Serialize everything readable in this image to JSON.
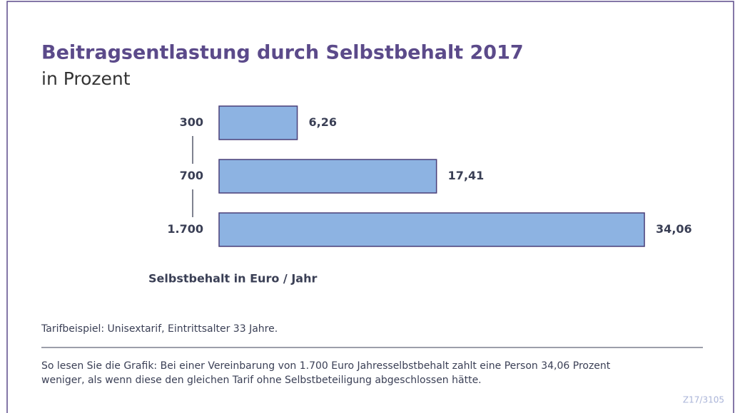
{
  "chart_data": {
    "type": "bar",
    "title": "Beitragsentlastung durch Selbstbehalt 2017",
    "subtitle": "in Prozent",
    "categories": [
      "300",
      "700",
      "1.700"
    ],
    "values": [
      6.26,
      17.41,
      34.06
    ],
    "value_labels": [
      "6,26",
      "17,41",
      "34,06"
    ],
    "color": "#8db3e2",
    "axis_label": "Selbstbehalt in Euro / Jahr",
    "note": "Tarifbeispiel: Unisextarif, Eintrittsalter 33 Jahre.",
    "explanation": [
      "So lesen Sie die Grafik: Bei einer Vereinbarung von 1.700 Euro Jahresselbstbehalt zahlt eine Person 34,06 Prozent",
      "weniger, als wenn diese den gleichen Tarif ohne Selbstbeteiligung abgeschlossen hätte."
    ],
    "code": "Z17/3105"
  }
}
